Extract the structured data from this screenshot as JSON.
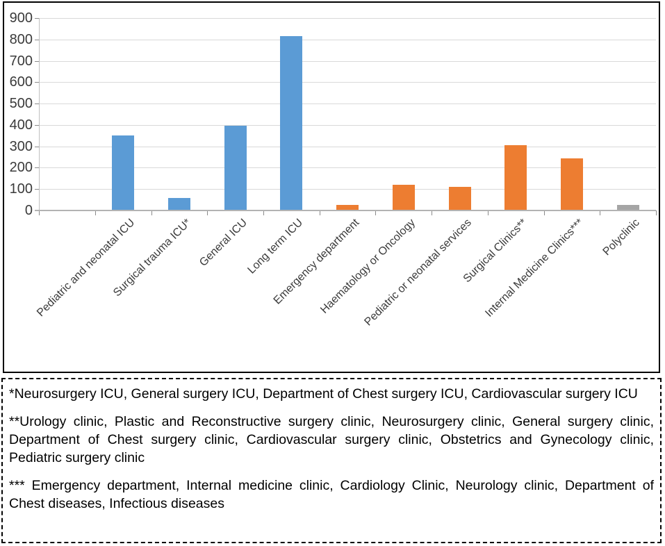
{
  "chart_data": {
    "type": "bar",
    "title": "",
    "xlabel": "",
    "ylabel": "",
    "categories": [
      "Pediatric and neonatal ICU",
      "Surgical trauma ICU*",
      "General ICU",
      "Long term ICU",
      "Emergency department",
      "Haematology or Oncology",
      "Pediatric or neonatal services",
      "Surgical Clinics**",
      "Internal Medicine Clinics***",
      "Polyclinic"
    ],
    "values": [
      350,
      60,
      395,
      815,
      25,
      120,
      110,
      305,
      245,
      25
    ],
    "bar_colors": [
      "#5B9BD5",
      "#5B9BD5",
      "#5B9BD5",
      "#5B9BD5",
      "#ED7D31",
      "#ED7D31",
      "#ED7D31",
      "#ED7D31",
      "#ED7D31",
      "#A5A5A5"
    ],
    "color_legend": {
      "icu_blue": "#5B9BD5",
      "department_orange": "#ED7D31",
      "polyclinic_gray": "#A5A5A5"
    },
    "ylim": [
      0,
      900
    ],
    "ytick_interval": 100,
    "yticks": [
      0,
      100,
      200,
      300,
      400,
      500,
      600,
      700,
      800,
      900
    ],
    "grid": true,
    "legend_position": "none",
    "leading_empty_slots": 1,
    "styles": {
      "gridline_color": "#D9D9D9",
      "axis_line_color": "#BFBFBF",
      "tick_color": "#8A8A8A",
      "label_color": "#3A3A3A"
    }
  },
  "footnotes": {
    "note1": "*Neurosurgery ICU, General surgery ICU, Department of Chest surgery ICU, Cardiovascular surgery ICU",
    "note2": "**Urology clinic, Plastic and Reconstructive surgery clinic, Neurosurgery clinic, General surgery clinic, Department of Chest surgery clinic, Cardiovascular surgery clinic, Obstetrics and Gynecology clinic, Pediatric surgery clinic",
    "note3": "*** Emergency department, Internal medicine clinic, Cardiology Clinic, Neurology clinic, Department of Chest diseases, Infectious diseases"
  }
}
